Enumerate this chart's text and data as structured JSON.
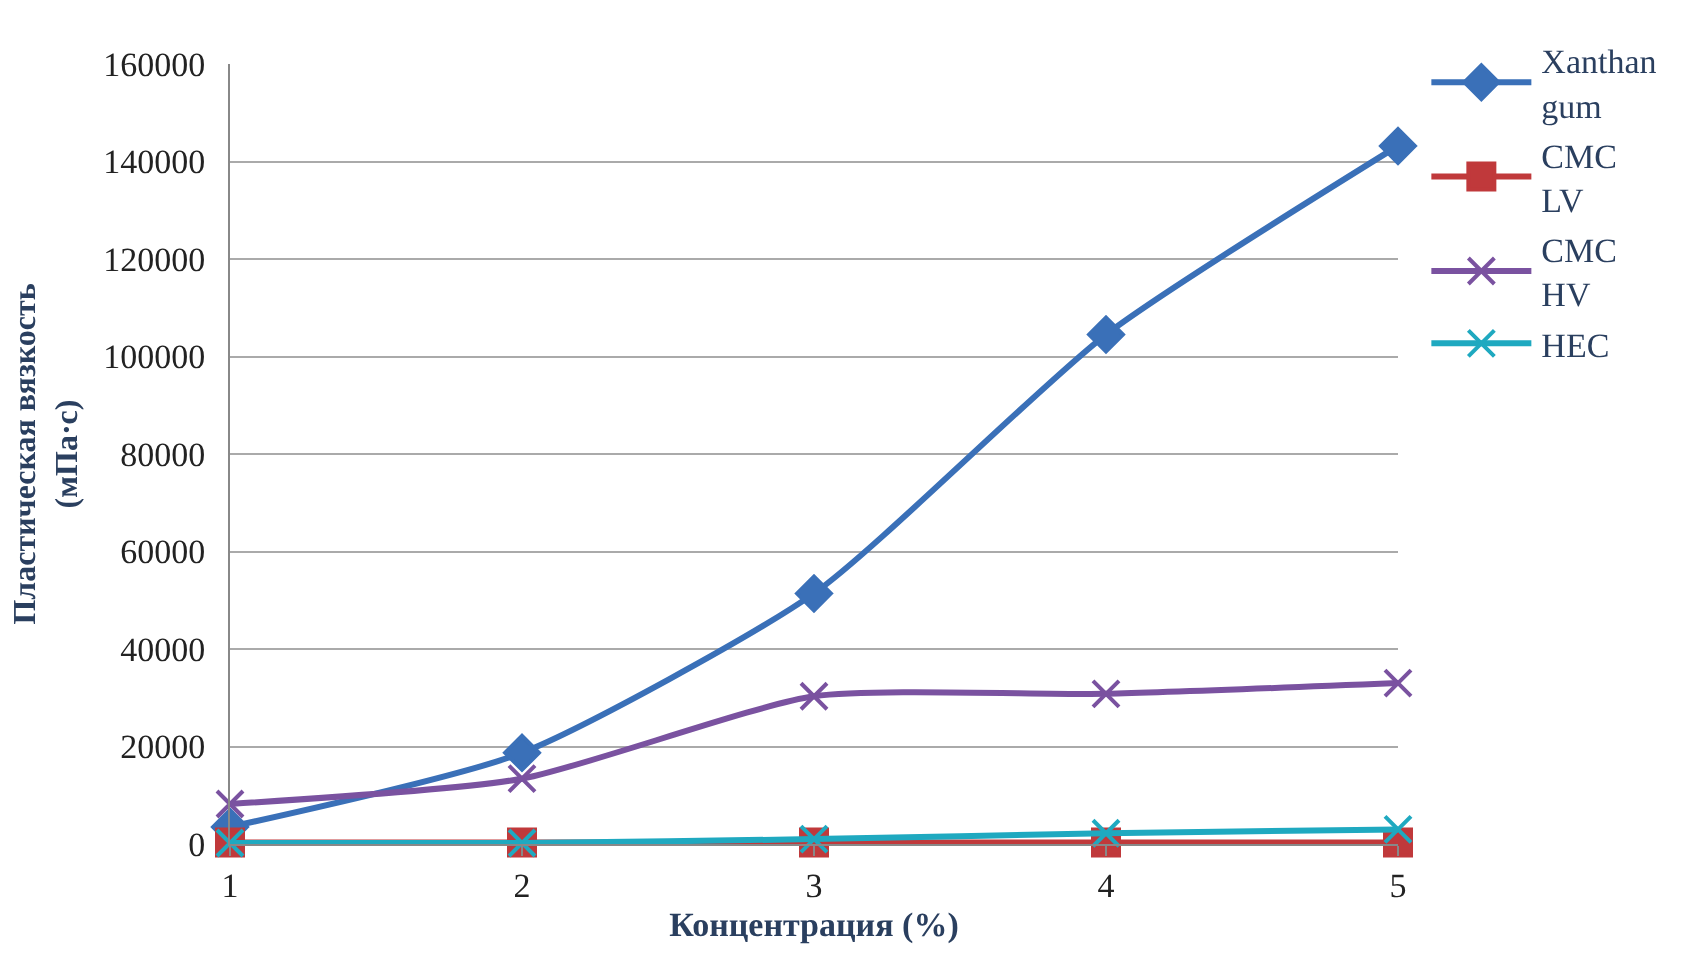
{
  "chart_data": {
    "type": "line",
    "xlabel": "Концентрация (%)",
    "ylabel": "Пластическая вязкость (мПа·с)",
    "x": [
      1,
      2,
      3,
      4,
      5
    ],
    "xlim": [
      1,
      5
    ],
    "xticks": [
      1,
      2,
      3,
      4,
      5
    ],
    "ylim": [
      0,
      160000
    ],
    "yticks": [
      0,
      20000,
      40000,
      60000,
      80000,
      100000,
      120000,
      140000,
      160000
    ],
    "grid": "y",
    "legend": "right",
    "series": [
      {
        "name": "Xanthan gum",
        "color": "#3a70b8",
        "marker": "diamond",
        "values": [
          3500,
          18700,
          51400,
          104500,
          143200
        ]
      },
      {
        "name": "CMC LV",
        "color": "#c0393b",
        "marker": "square",
        "values": [
          300,
          300,
          300,
          300,
          300
        ]
      },
      {
        "name": "CMC HV",
        "color": "#7a52a0",
        "marker": "cross",
        "values": [
          8200,
          13400,
          30300,
          30800,
          33000
        ]
      },
      {
        "name": "HEC",
        "color": "#1fa9c0",
        "marker": "cross",
        "values": [
          200,
          200,
          1000,
          2200,
          3000
        ]
      }
    ]
  }
}
